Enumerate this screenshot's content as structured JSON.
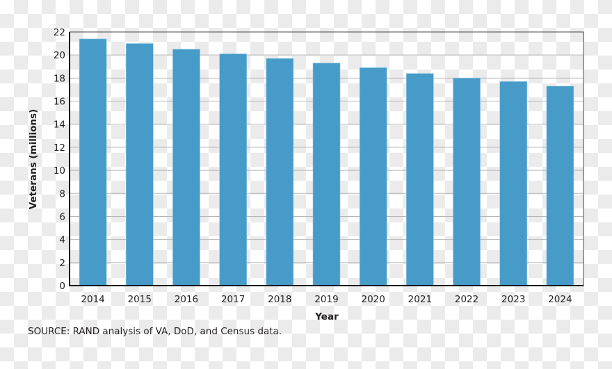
{
  "chart_data": {
    "type": "bar",
    "title": "",
    "xlabel": "Year",
    "ylabel": "Veterans (millions)",
    "categories": [
      "2014",
      "2015",
      "2016",
      "2017",
      "2018",
      "2019",
      "2020",
      "2021",
      "2022",
      "2023",
      "2024"
    ],
    "values": [
      21.4,
      21.0,
      20.5,
      20.1,
      19.7,
      19.3,
      18.9,
      18.4,
      18.0,
      17.7,
      17.3
    ],
    "ylim": [
      0,
      22
    ],
    "yticks": [
      0,
      2,
      4,
      6,
      8,
      10,
      12,
      14,
      16,
      18,
      20,
      22
    ],
    "grid": true,
    "legend": null,
    "bar_color": "#479bc8",
    "annotations": []
  },
  "source_note": "SOURCE: RAND analysis of VA, DoD, and Census data."
}
